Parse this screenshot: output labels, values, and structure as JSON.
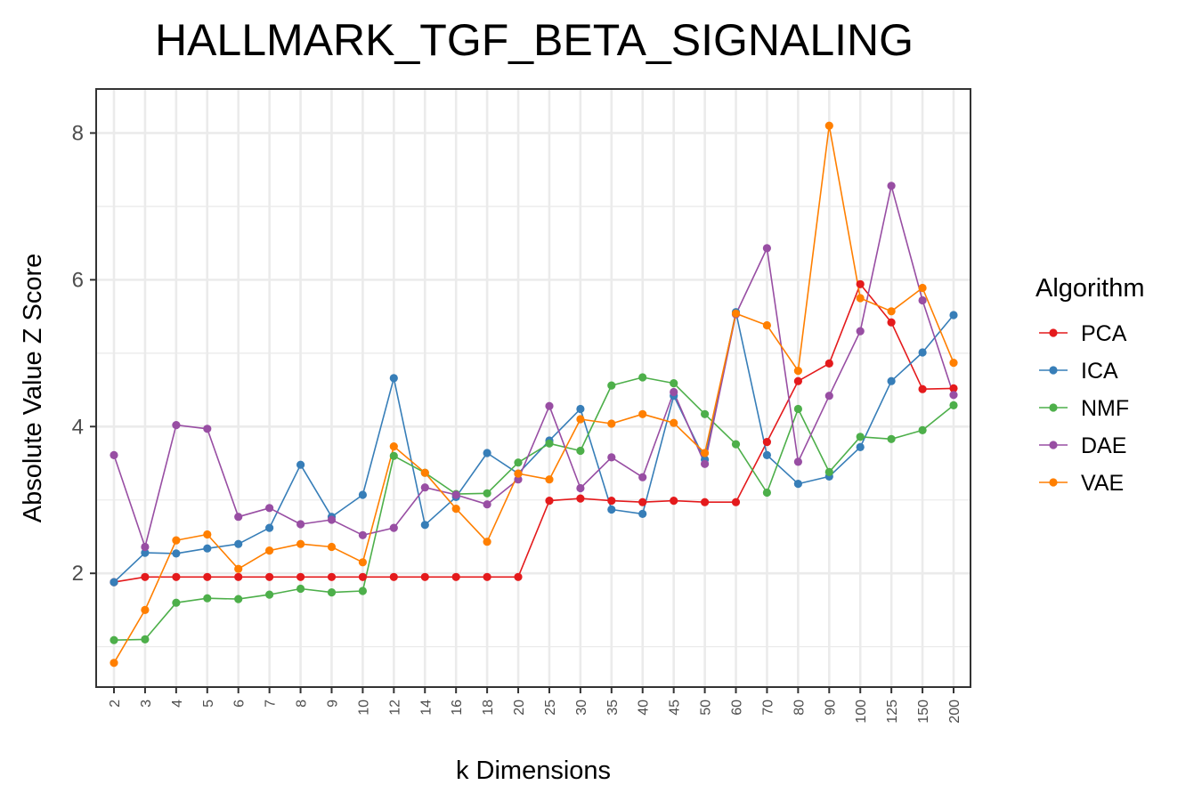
{
  "chart_data": {
    "type": "line",
    "title": "HALLMARK_TGF_BETA_SIGNALING",
    "xlabel": "k Dimensions",
    "ylabel": "Absolute Value Z Score",
    "categories": [
      "2",
      "3",
      "4",
      "5",
      "6",
      "7",
      "8",
      "9",
      "10",
      "12",
      "14",
      "16",
      "18",
      "20",
      "25",
      "30",
      "35",
      "40",
      "45",
      "50",
      "60",
      "70",
      "80",
      "90",
      "100",
      "125",
      "150",
      "200"
    ],
    "ylim": [
      0.45,
      8.6
    ],
    "yticks": [
      2,
      4,
      6,
      8
    ],
    "ytick_labels": [
      "2",
      "4",
      "6",
      "8"
    ],
    "grid": true,
    "legend_title": "Algorithm",
    "legend_position": "right",
    "series": [
      {
        "name": "PCA",
        "color": "#E41A1C",
        "values": [
          1.88,
          1.95,
          1.95,
          1.95,
          1.95,
          1.95,
          1.95,
          1.95,
          1.95,
          1.95,
          1.95,
          1.95,
          1.95,
          1.95,
          2.99,
          3.02,
          2.99,
          2.97,
          2.99,
          2.97,
          2.97,
          3.79,
          4.62,
          4.86,
          5.94,
          5.42,
          4.51,
          4.52
        ]
      },
      {
        "name": "ICA",
        "color": "#377EB8",
        "values": [
          1.88,
          2.28,
          2.27,
          2.34,
          2.4,
          2.62,
          3.48,
          2.77,
          3.07,
          4.66,
          2.66,
          3.04,
          3.64,
          3.36,
          3.81,
          4.24,
          2.87,
          2.81,
          4.42,
          3.55,
          5.56,
          3.61,
          3.22,
          3.32,
          3.72,
          4.62,
          5.01,
          5.52
        ]
      },
      {
        "name": "NMF",
        "color": "#4DAF4A",
        "values": [
          1.09,
          1.1,
          1.6,
          1.66,
          1.65,
          1.71,
          1.79,
          1.74,
          1.76,
          3.6,
          3.37,
          3.08,
          3.09,
          3.51,
          3.77,
          3.67,
          4.56,
          4.67,
          4.59,
          4.17,
          3.76,
          3.1,
          4.24,
          3.38,
          3.86,
          3.83,
          3.95,
          4.29
        ]
      },
      {
        "name": "DAE",
        "color": "#984EA3",
        "values": [
          3.61,
          2.36,
          4.02,
          3.97,
          2.77,
          2.89,
          2.67,
          2.73,
          2.52,
          2.62,
          3.17,
          3.07,
          2.94,
          3.28,
          4.28,
          3.16,
          3.58,
          3.31,
          4.47,
          3.49,
          5.53,
          6.43,
          3.52,
          4.42,
          5.3,
          7.28,
          5.72,
          4.43
        ]
      },
      {
        "name": "VAE",
        "color": "#FF7F00",
        "values": [
          0.78,
          1.5,
          2.45,
          2.53,
          2.06,
          2.31,
          2.4,
          2.36,
          2.15,
          3.73,
          3.37,
          2.88,
          2.43,
          3.36,
          3.28,
          4.1,
          4.04,
          4.17,
          4.05,
          3.64,
          5.54,
          5.38,
          4.76,
          8.1,
          5.75,
          5.57,
          5.89,
          4.87
        ]
      }
    ]
  }
}
